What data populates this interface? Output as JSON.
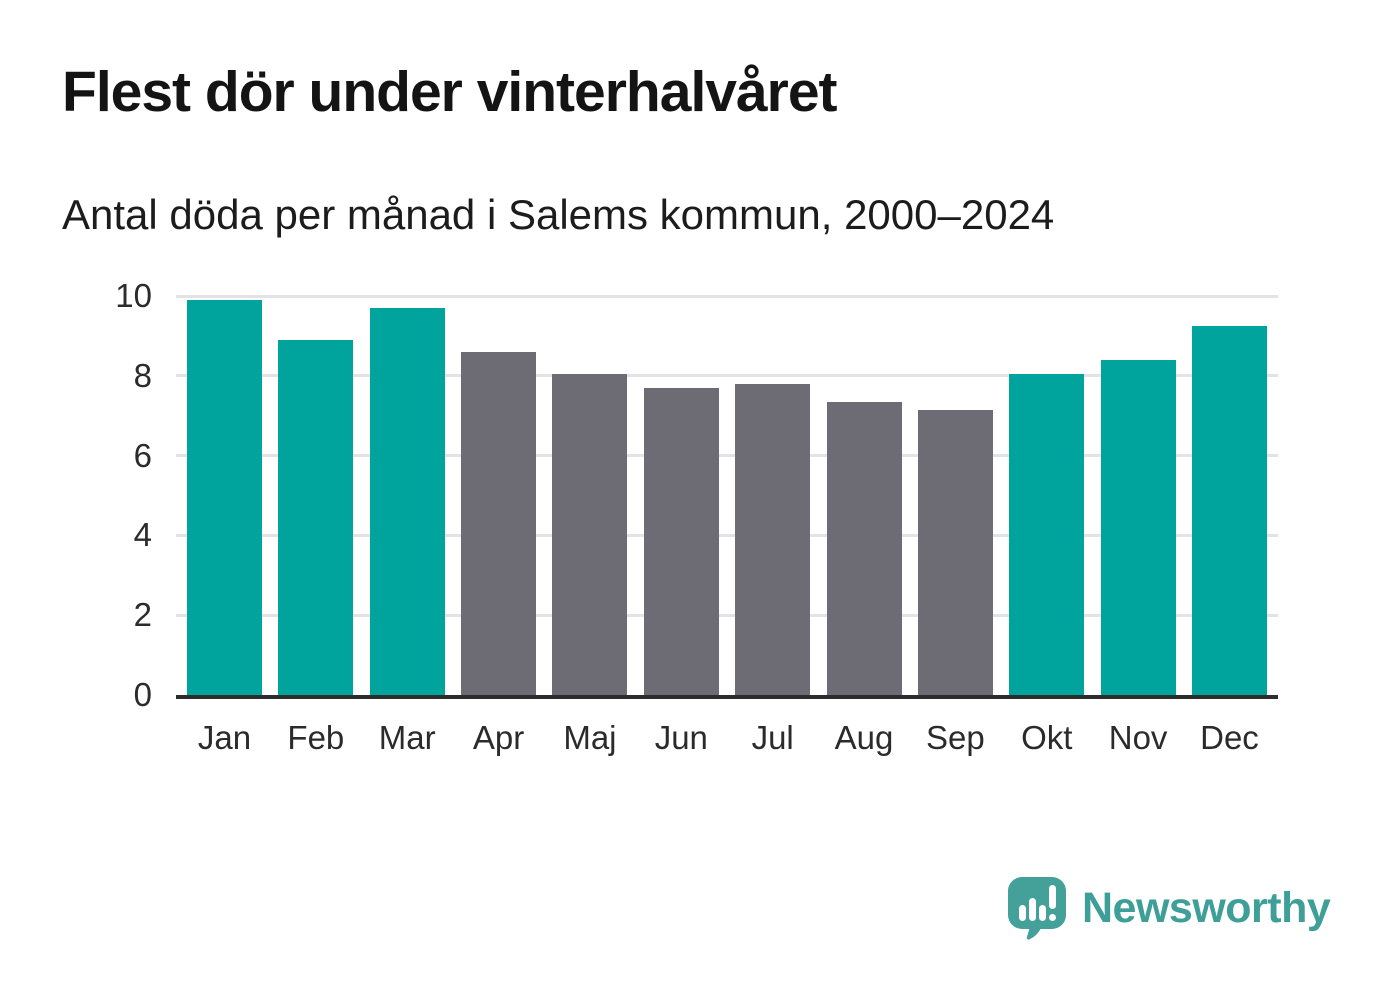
{
  "header": {
    "title": "Flest dör under vinterhalvåret",
    "subtitle": "Antal döda per månad i Salems kommun, 2000–2024"
  },
  "chart_data": {
    "type": "bar",
    "title": "Flest dör under vinterhalvåret",
    "subtitle": "Antal döda per månad i Salems kommun, 2000–2024",
    "categories": [
      "Jan",
      "Feb",
      "Mar",
      "Apr",
      "Maj",
      "Jun",
      "Jul",
      "Aug",
      "Sep",
      "Okt",
      "Nov",
      "Dec"
    ],
    "values": [
      9.9,
      8.9,
      9.7,
      8.6,
      8.05,
      7.7,
      7.8,
      7.35,
      7.15,
      8.05,
      8.4,
      9.25
    ],
    "bar_highlighted": [
      true,
      true,
      true,
      false,
      false,
      false,
      false,
      false,
      false,
      true,
      true,
      true
    ],
    "palette": {
      "highlight": "#00a49c",
      "muted": "#6d6c74"
    },
    "xlabel": "",
    "ylabel": "",
    "ylim": [
      0,
      10
    ],
    "yticks": [
      0,
      2,
      4,
      6,
      8,
      10
    ],
    "grid": "horizontal",
    "legend": "none",
    "gridline_color": "#e3e2e6",
    "axis_line_color": "#2d2d2d"
  },
  "footer": {
    "brand": "Newsworthy",
    "brand_color": "#3e9f98",
    "logo_icon": "bar-chart-speech-bubble-icon"
  }
}
